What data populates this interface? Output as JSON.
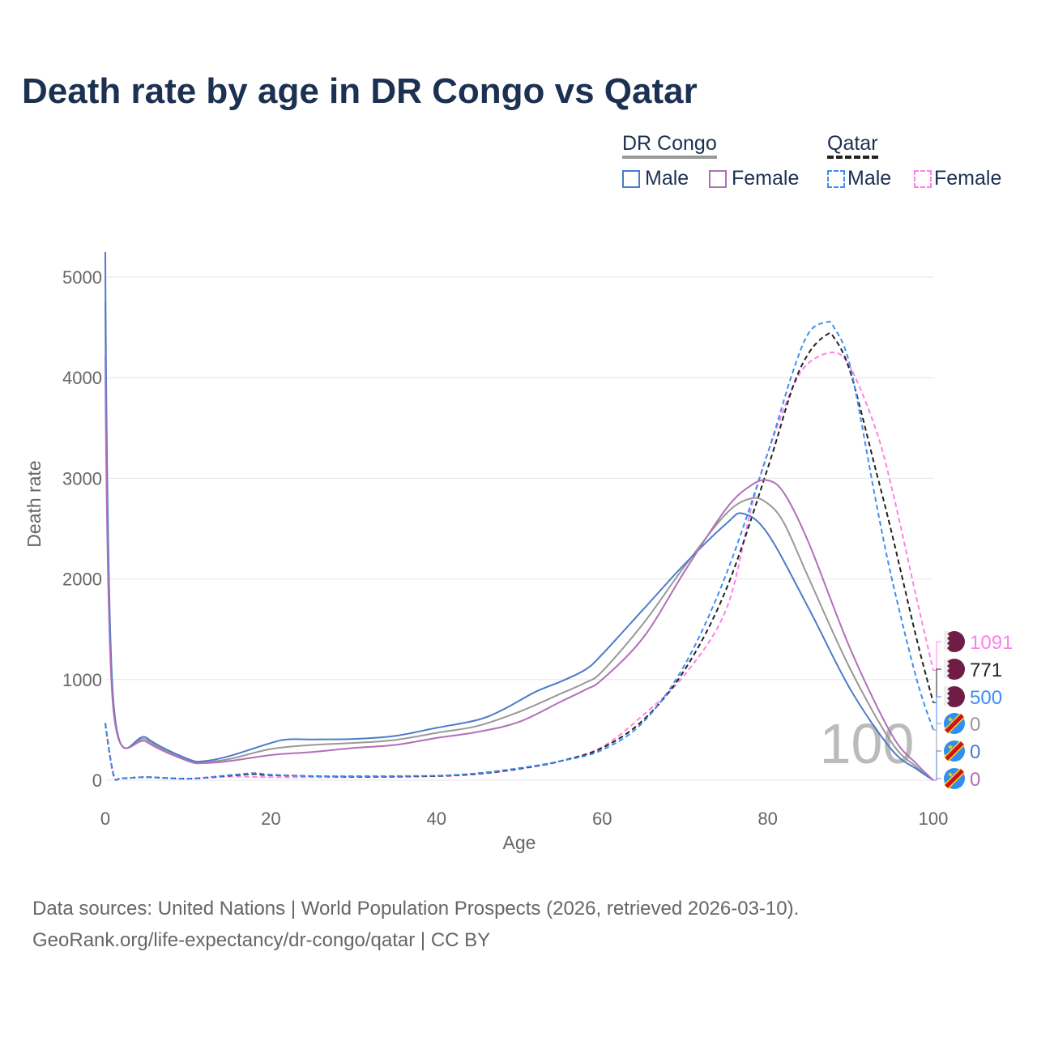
{
  "chart_data": {
    "type": "line",
    "title": "Death rate by age in DR Congo vs Qatar",
    "xlabel": "Age",
    "ylabel": "Death rate",
    "xlim": [
      0,
      100
    ],
    "ylim": [
      0,
      5000
    ],
    "xticks": [
      0,
      20,
      40,
      60,
      80,
      100
    ],
    "yticks": [
      0,
      1000,
      2000,
      3000,
      4000,
      5000
    ],
    "grid": true,
    "legend_position": "top-right",
    "legend_groups": [
      {
        "name": "DR Congo",
        "items": [
          "Male",
          "Female"
        ]
      },
      {
        "name": "Qatar",
        "items": [
          "Male",
          "Female"
        ]
      }
    ],
    "watermark": "100",
    "series": [
      {
        "name": "Qatar Female",
        "country": "Qatar",
        "color": "#ff80e8",
        "dash": true,
        "end_label": "1091",
        "points": [
          [
            0,
            560
          ],
          [
            1,
            50
          ],
          [
            2,
            20
          ],
          [
            5,
            30
          ],
          [
            10,
            15
          ],
          [
            15,
            35
          ],
          [
            20,
            30
          ],
          [
            30,
            30
          ],
          [
            40,
            40
          ],
          [
            45,
            60
          ],
          [
            50,
            110
          ],
          [
            55,
            190
          ],
          [
            60,
            330
          ],
          [
            65,
            650
          ],
          [
            70,
            1050
          ],
          [
            75,
            1700
          ],
          [
            78,
            2700
          ],
          [
            80,
            3250
          ],
          [
            83,
            3900
          ],
          [
            85,
            4150
          ],
          [
            88,
            4250
          ],
          [
            90,
            4100
          ],
          [
            93,
            3500
          ],
          [
            95,
            2900
          ],
          [
            98,
            1800
          ],
          [
            100,
            1091
          ]
        ]
      },
      {
        "name": "Qatar Total",
        "country": "Qatar",
        "color": "#222222",
        "dash": true,
        "end_label": "771",
        "points": [
          [
            0,
            565
          ],
          [
            1,
            50
          ],
          [
            2,
            20
          ],
          [
            5,
            30
          ],
          [
            10,
            15
          ],
          [
            15,
            45
          ],
          [
            18,
            60
          ],
          [
            20,
            50
          ],
          [
            30,
            35
          ],
          [
            40,
            42
          ],
          [
            45,
            65
          ],
          [
            50,
            115
          ],
          [
            55,
            190
          ],
          [
            60,
            320
          ],
          [
            65,
            600
          ],
          [
            70,
            1100
          ],
          [
            75,
            1900
          ],
          [
            80,
            3100
          ],
          [
            83,
            3900
          ],
          [
            85,
            4250
          ],
          [
            87,
            4420
          ],
          [
            88,
            4400
          ],
          [
            90,
            4050
          ],
          [
            93,
            3100
          ],
          [
            95,
            2450
          ],
          [
            98,
            1400
          ],
          [
            100,
            771
          ]
        ]
      },
      {
        "name": "Qatar Male",
        "country": "Qatar",
        "color": "#3d8ef5",
        "dash": true,
        "end_label": "500",
        "points": [
          [
            0,
            570
          ],
          [
            1,
            50
          ],
          [
            2,
            20
          ],
          [
            5,
            30
          ],
          [
            10,
            15
          ],
          [
            15,
            50
          ],
          [
            18,
            70
          ],
          [
            20,
            55
          ],
          [
            25,
            40
          ],
          [
            30,
            40
          ],
          [
            40,
            45
          ],
          [
            45,
            70
          ],
          [
            50,
            120
          ],
          [
            55,
            190
          ],
          [
            60,
            300
          ],
          [
            65,
            580
          ],
          [
            70,
            1150
          ],
          [
            75,
            2050
          ],
          [
            80,
            3250
          ],
          [
            83,
            4050
          ],
          [
            85,
            4450
          ],
          [
            87,
            4550
          ],
          [
            88,
            4500
          ],
          [
            90,
            4100
          ],
          [
            93,
            2800
          ],
          [
            95,
            2000
          ],
          [
            98,
            1000
          ],
          [
            100,
            500
          ]
        ]
      },
      {
        "name": "DR Congo Total",
        "country": "DR Congo",
        "color": "#999999",
        "dash": false,
        "end_label": "0",
        "points": [
          [
            0,
            4750
          ],
          [
            1,
            720
          ],
          [
            5,
            400
          ],
          [
            10,
            200
          ],
          [
            12,
            180
          ],
          [
            15,
            210
          ],
          [
            20,
            310
          ],
          [
            25,
            350
          ],
          [
            30,
            370
          ],
          [
            35,
            400
          ],
          [
            40,
            470
          ],
          [
            45,
            540
          ],
          [
            50,
            680
          ],
          [
            55,
            860
          ],
          [
            58,
            970
          ],
          [
            60,
            1080
          ],
          [
            65,
            1560
          ],
          [
            70,
            2130
          ],
          [
            75,
            2650
          ],
          [
            78,
            2800
          ],
          [
            80,
            2750
          ],
          [
            82,
            2550
          ],
          [
            85,
            2000
          ],
          [
            90,
            1100
          ],
          [
            95,
            370
          ],
          [
            98,
            130
          ],
          [
            100,
            0
          ]
        ]
      },
      {
        "name": "DR Congo Male",
        "country": "DR Congo",
        "color": "#4a7cc9",
        "dash": false,
        "end_label": "0",
        "points": [
          [
            0,
            5250
          ],
          [
            1,
            760
          ],
          [
            5,
            420
          ],
          [
            10,
            210
          ],
          [
            12,
            190
          ],
          [
            15,
            240
          ],
          [
            20,
            370
          ],
          [
            22,
            405
          ],
          [
            25,
            405
          ],
          [
            30,
            410
          ],
          [
            35,
            440
          ],
          [
            40,
            520
          ],
          [
            45,
            600
          ],
          [
            48,
            700
          ],
          [
            52,
            880
          ],
          [
            55,
            980
          ],
          [
            58,
            1100
          ],
          [
            60,
            1250
          ],
          [
            65,
            1700
          ],
          [
            70,
            2150
          ],
          [
            75,
            2550
          ],
          [
            77,
            2650
          ],
          [
            80,
            2450
          ],
          [
            85,
            1700
          ],
          [
            90,
            900
          ],
          [
            95,
            300
          ],
          [
            98,
            110
          ],
          [
            100,
            0
          ]
        ]
      },
      {
        "name": "DR Congo Female",
        "country": "DR Congo",
        "color": "#b070b8",
        "dash": false,
        "end_label": "0",
        "points": [
          [
            0,
            4230
          ],
          [
            1,
            680
          ],
          [
            5,
            380
          ],
          [
            10,
            190
          ],
          [
            12,
            170
          ],
          [
            15,
            190
          ],
          [
            20,
            250
          ],
          [
            25,
            280
          ],
          [
            30,
            320
          ],
          [
            35,
            350
          ],
          [
            40,
            420
          ],
          [
            45,
            480
          ],
          [
            50,
            580
          ],
          [
            55,
            780
          ],
          [
            58,
            900
          ],
          [
            60,
            1000
          ],
          [
            65,
            1420
          ],
          [
            70,
            2080
          ],
          [
            75,
            2700
          ],
          [
            78,
            2930
          ],
          [
            80,
            2980
          ],
          [
            82,
            2850
          ],
          [
            85,
            2350
          ],
          [
            90,
            1300
          ],
          [
            95,
            450
          ],
          [
            98,
            160
          ],
          [
            100,
            0
          ]
        ]
      }
    ]
  },
  "footer": {
    "line1": "Data sources: United Nations | World Population Prospects (2026, retrieved 2026-03-10).",
    "line2": "GeoRank.org/life-expectancy/dr-congo/qatar | CC BY"
  }
}
